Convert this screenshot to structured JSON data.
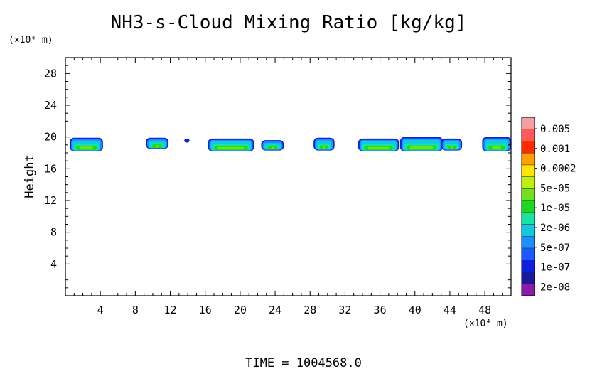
{
  "chart_data": {
    "type": "heatmap",
    "title": "NH3-s-Cloud Mixing Ratio [kg/kg]",
    "ylabel": "Height",
    "y_unit": "(×10⁴ m)",
    "x_unit": "(×10⁴ m)",
    "xlabel": "",
    "xlim": [
      0,
      51
    ],
    "ylim": [
      0,
      30
    ],
    "x_ticks": [
      4,
      8,
      12,
      16,
      20,
      24,
      28,
      32,
      36,
      40,
      44,
      48
    ],
    "y_ticks": [
      4,
      8,
      12,
      16,
      20,
      24,
      28
    ],
    "footer": "TIME = 1004568.0",
    "colorbar": {
      "labels": [
        "0.005",
        "0.001",
        "0.0002",
        "5e-05",
        "1e-05",
        "2e-06",
        "5e-07",
        "1e-07",
        "2e-08"
      ],
      "colors": [
        "#f4a0a0",
        "#ff5a5a",
        "#ff2a00",
        "#ff9f00",
        "#ffe500",
        "#bfef10",
        "#70e020",
        "#1ed81e",
        "#16e3a4",
        "#10c8e0",
        "#1a90ff",
        "#1a5aff",
        "#1020e0",
        "#1a1a9a",
        "#8a1aa8"
      ]
    },
    "cloud_patches": [
      {
        "x0": 0.5,
        "x1": 4.3,
        "ybot": 18.2,
        "ytop": 19.9
      },
      {
        "x0": 9.2,
        "x1": 11.8,
        "ybot": 18.5,
        "ytop": 19.9
      },
      {
        "x0": 13.6,
        "x1": 14.2,
        "ybot": 19.3,
        "ytop": 19.8
      },
      {
        "x0": 16.3,
        "x1": 21.6,
        "ybot": 18.2,
        "ytop": 19.8
      },
      {
        "x0": 22.4,
        "x1": 25.0,
        "ybot": 18.3,
        "ytop": 19.6
      },
      {
        "x0": 28.4,
        "x1": 30.8,
        "ybot": 18.3,
        "ytop": 19.9
      },
      {
        "x0": 33.5,
        "x1": 38.2,
        "ybot": 18.2,
        "ytop": 19.8
      },
      {
        "x0": 38.3,
        "x1": 43.2,
        "ybot": 18.2,
        "ytop": 20.0
      },
      {
        "x0": 43.0,
        "x1": 45.4,
        "ybot": 18.3,
        "ytop": 19.8
      },
      {
        "x0": 47.7,
        "x1": 51.0,
        "ybot": 18.2,
        "ytop": 20.0
      }
    ]
  }
}
